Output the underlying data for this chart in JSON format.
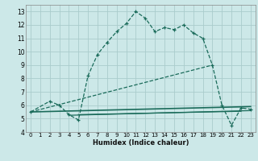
{
  "xlabel": "Humidex (Indice chaleur)",
  "bg_color": "#cce8e8",
  "grid_color": "#aacccc",
  "line_color": "#1a6b5a",
  "xlim": [
    -0.5,
    23.5
  ],
  "ylim": [
    4,
    13.5
  ],
  "yticks": [
    4,
    5,
    6,
    7,
    8,
    9,
    10,
    11,
    12,
    13
  ],
  "xticks": [
    0,
    1,
    2,
    3,
    4,
    5,
    6,
    7,
    8,
    9,
    10,
    11,
    12,
    13,
    14,
    15,
    16,
    17,
    18,
    19,
    20,
    21,
    22,
    23
  ],
  "line1_x": [
    0,
    2,
    3,
    4,
    5,
    6,
    7,
    8,
    9,
    10,
    11,
    12,
    13,
    14,
    15,
    16,
    17,
    18,
    19,
    20,
    21,
    22,
    23
  ],
  "line1_y": [
    5.5,
    6.3,
    6.0,
    5.3,
    4.9,
    8.2,
    9.8,
    10.7,
    11.5,
    12.1,
    13.0,
    12.5,
    11.5,
    11.8,
    11.65,
    12.0,
    11.4,
    11.0,
    9.0,
    6.0,
    4.5,
    5.8,
    5.7
  ],
  "line2_x": [
    0,
    23
  ],
  "line2_y": [
    5.5,
    5.9
  ],
  "line3_x": [
    0,
    19
  ],
  "line3_y": [
    5.5,
    9.0
  ],
  "line4_x": [
    4,
    23
  ],
  "line4_y": [
    5.25,
    5.6
  ],
  "line5_x": [
    5,
    22
  ],
  "line5_y": [
    5.3,
    5.55
  ]
}
